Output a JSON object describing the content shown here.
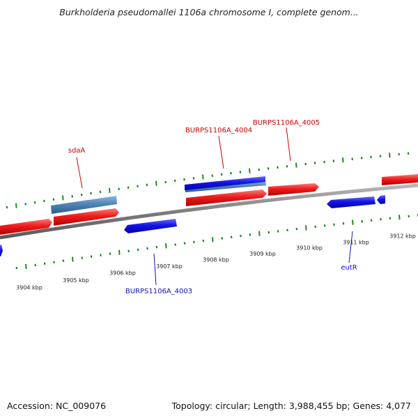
{
  "title": "Burkholderia pseudomallei 1106a chromosome I, complete genom...",
  "footer": {
    "accession": "Accession: NC_009076",
    "summary": "Topology: circular; Length: 3,988,455 bp; Genes: 4,077"
  },
  "colors": {
    "forward_gene": "#e8141b",
    "reverse_gene": "#1515e8",
    "rna_gene": "#4f86b6",
    "backbone": "#808080",
    "tick": "#1f8a1f",
    "scale_text": "#222222",
    "label_forward": "#cc0000",
    "label_reverse": "#1010bb"
  },
  "scale": {
    "unit": "kbp",
    "ticks": [
      {
        "label": "3904 kbp"
      },
      {
        "label": "3905 kbp"
      },
      {
        "label": "3906 kbp"
      },
      {
        "label": "3907 kbp"
      },
      {
        "label": "3908 kbp"
      },
      {
        "label": "3909 kbp"
      },
      {
        "label": "3910 kbp"
      },
      {
        "label": "3911 kbp"
      },
      {
        "label": "3912 kbp"
      }
    ]
  },
  "gene_labels": [
    {
      "name": "sdaA",
      "strand": "forward"
    },
    {
      "name": "BURPS1106A_4004",
      "strand": "forward"
    },
    {
      "name": "BURPS1106A_4005",
      "strand": "forward"
    },
    {
      "name": "BURPS1106A_4003",
      "strand": "reverse"
    },
    {
      "name": "eutR",
      "strand": "reverse"
    }
  ]
}
